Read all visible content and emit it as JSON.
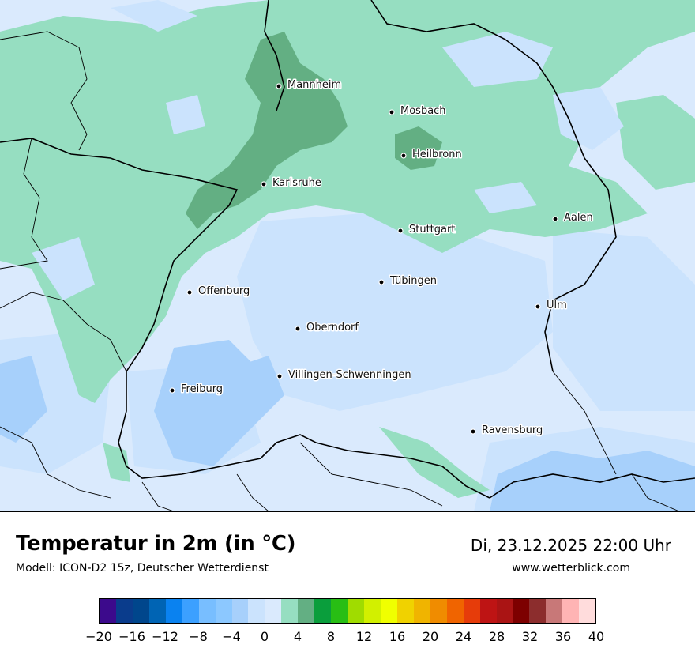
{
  "title": "Temperatur in 2m (in °C)",
  "subtitle": "Modell: ICON-D2 15z, Deutscher Wetterdienst",
  "datetime": "Di, 23.12.2025 22:00 Uhr",
  "site": "www.wetterblick.com",
  "colors": {
    "temp_0_2": "#cbe3fd",
    "temp_m2_0": "#a7d0fb",
    "temp_2_4": "#96dec1",
    "temp_4_6": "#63af83",
    "background_light": "#daeafd"
  },
  "cities": [
    {
      "name": "Mannheim"
    },
    {
      "name": "Mosbach"
    },
    {
      "name": "Heilbronn"
    },
    {
      "name": "Karlsruhe"
    },
    {
      "name": "Aalen"
    },
    {
      "name": "Stuttgart"
    },
    {
      "name": "Tübingen"
    },
    {
      "name": "Offenburg"
    },
    {
      "name": "Ulm"
    },
    {
      "name": "Oberndorf"
    },
    {
      "name": "Villingen-Schwenningen"
    },
    {
      "name": "Freiburg"
    },
    {
      "name": "Ravensburg"
    }
  ],
  "colorbar": {
    "colors": [
      "#3c0a8c",
      "#0a3c8c",
      "#00468c",
      "#0064b4",
      "#0a82f0",
      "#3ca0ff",
      "#78beff",
      "#8cc8ff",
      "#a7d0fb",
      "#cbe3fd",
      "#daeafd",
      "#96dec1",
      "#63af83",
      "#0a9e3c",
      "#28be14",
      "#a0dc00",
      "#d2f000",
      "#f0ff00",
      "#f0d200",
      "#f0b400",
      "#f08c00",
      "#f06400",
      "#e63c0a",
      "#be1414",
      "#aa1414",
      "#7d0000",
      "#8c2d2d",
      "#c87878",
      "#ffb4b4",
      "#ffdcdc"
    ],
    "ticks": [
      "−20",
      "−16",
      "−12",
      "−8",
      "−4",
      "0",
      "4",
      "8",
      "12",
      "16",
      "20",
      "24",
      "28",
      "32",
      "36",
      "40"
    ]
  }
}
